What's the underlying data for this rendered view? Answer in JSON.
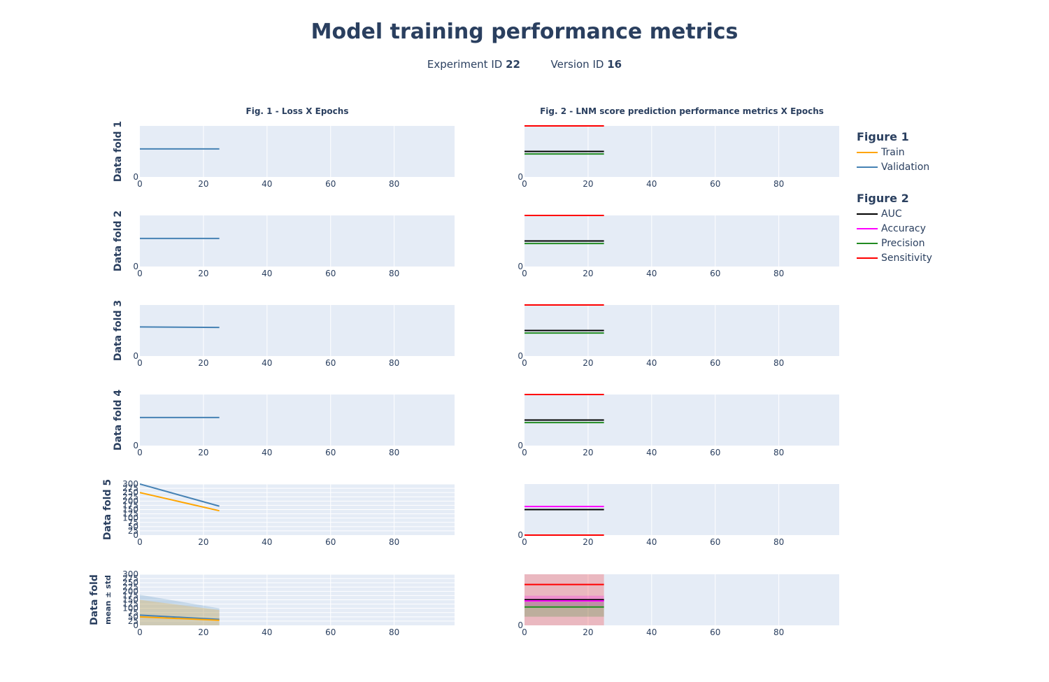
{
  "header": {
    "title": "Model training performance metrics",
    "experiment_label": "Experiment ID",
    "experiment_id": "22",
    "version_label": "Version ID",
    "version_id": "16"
  },
  "columns": [
    {
      "title": "Fig. 1 - Loss X Epochs"
    },
    {
      "title": "Fig. 2 - LNM score prediction performance metrics X Epochs"
    }
  ],
  "legend": {
    "figure1_title": "Figure 1",
    "figure1_items": [
      {
        "name": "Train",
        "color": "#ffa500"
      },
      {
        "name": "Validation",
        "color": "#4682b4"
      }
    ],
    "figure2_title": "Figure 2",
    "figure2_items": [
      {
        "name": "AUC",
        "color": "#000000"
      },
      {
        "name": "Accuracy",
        "color": "#ff00ff"
      },
      {
        "name": "Precision",
        "color": "#228b22"
      },
      {
        "name": "Sensitivity",
        "color": "#ff0000"
      }
    ]
  },
  "chart_data": {
    "type": "line",
    "x_axis": {
      "ticks": [
        0,
        20,
        40,
        60,
        80
      ],
      "range": [
        0,
        99
      ]
    },
    "epochs": [
      0,
      25
    ],
    "row_labels": [
      "Data fold 1",
      "Data fold 2",
      "Data fold 3",
      "Data fold 4",
      "Data fold 5",
      "Data fold"
    ],
    "mean_row_sublabel": "mean ± std",
    "loss_y_ticks": [
      0,
      25,
      50,
      75,
      100,
      125,
      150,
      175,
      200,
      225,
      250,
      275,
      300
    ],
    "loss_y_range": [
      0,
      300
    ],
    "metric_y_ticks": [
      0
    ],
    "metric_y_range": [
      0,
      1
    ],
    "loss_panels": [
      {
        "fold": "Data fold 1",
        "series": [
          {
            "name": "Validation",
            "values": [
              0.55,
              0.55
            ]
          }
        ],
        "y_ticks": [
          0
        ],
        "ylim": [
          0,
          1
        ]
      },
      {
        "fold": "Data fold 2",
        "series": [
          {
            "name": "Validation",
            "values": [
              0.55,
              0.55
            ]
          }
        ],
        "y_ticks": [
          0
        ],
        "ylim": [
          0,
          1
        ]
      },
      {
        "fold": "Data fold 3",
        "series": [
          {
            "name": "Validation",
            "values": [
              0.57,
              0.56
            ]
          }
        ],
        "y_ticks": [
          0
        ],
        "ylim": [
          0,
          1
        ]
      },
      {
        "fold": "Data fold 4",
        "series": [
          {
            "name": "Validation",
            "values": [
              0.55,
              0.55
            ]
          }
        ],
        "y_ticks": [
          0
        ],
        "ylim": [
          0,
          1
        ]
      },
      {
        "fold": "Data fold 5",
        "series": [
          {
            "name": "Validation",
            "values": [
              300,
              170
            ]
          },
          {
            "name": "Train",
            "values": [
              250,
              143
            ]
          }
        ],
        "ylim": [
          0,
          300
        ]
      },
      {
        "fold": "Data fold",
        "series": [
          {
            "name": "Validation",
            "values": [
              60,
              35
            ],
            "std_upper": [
              180,
              100
            ],
            "std_lower": [
              0,
              0
            ]
          },
          {
            "name": "Train",
            "values": [
              50,
              30
            ],
            "std_upper": [
              150,
              90
            ],
            "std_lower": [
              0,
              0
            ]
          }
        ],
        "ylim": [
          0,
          300
        ]
      }
    ],
    "metric_panels": [
      {
        "fold": "Data fold 1",
        "series": [
          {
            "name": "Sensitivity",
            "values": [
              1.0,
              1.0
            ]
          },
          {
            "name": "AUC",
            "values": [
              0.5,
              0.5
            ]
          },
          {
            "name": "Precision",
            "values": [
              0.45,
              0.45
            ]
          }
        ]
      },
      {
        "fold": "Data fold 2",
        "series": [
          {
            "name": "Sensitivity",
            "values": [
              1.0,
              1.0
            ]
          },
          {
            "name": "AUC",
            "values": [
              0.5,
              0.5
            ]
          },
          {
            "name": "Precision",
            "values": [
              0.45,
              0.45
            ]
          }
        ]
      },
      {
        "fold": "Data fold 3",
        "series": [
          {
            "name": "Sensitivity",
            "values": [
              1.0,
              1.0
            ]
          },
          {
            "name": "AUC",
            "values": [
              0.5,
              0.5
            ]
          },
          {
            "name": "Precision",
            "values": [
              0.45,
              0.45
            ]
          }
        ]
      },
      {
        "fold": "Data fold 4",
        "series": [
          {
            "name": "Sensitivity",
            "values": [
              1.0,
              1.0
            ]
          },
          {
            "name": "AUC",
            "values": [
              0.5,
              0.5
            ]
          },
          {
            "name": "Precision",
            "values": [
              0.45,
              0.45
            ]
          }
        ]
      },
      {
        "fold": "Data fold 5",
        "series": [
          {
            "name": "Accuracy",
            "values": [
              0.56,
              0.56
            ]
          },
          {
            "name": "AUC",
            "values": [
              0.5,
              0.5
            ]
          },
          {
            "name": "Sensitivity",
            "values": [
              0.0,
              0.0
            ]
          }
        ]
      },
      {
        "fold": "Data fold",
        "series": [
          {
            "name": "Sensitivity",
            "values": [
              0.8,
              0.8
            ],
            "std_upper": [
              1.0,
              1.0
            ],
            "std_lower": [
              0.0,
              0.0
            ]
          },
          {
            "name": "AUC",
            "values": [
              0.5,
              0.5
            ],
            "std_upper": [
              0.52,
              0.52
            ],
            "std_lower": [
              0.48,
              0.48
            ]
          },
          {
            "name": "Accuracy",
            "values": [
              0.48,
              0.48
            ],
            "std_upper": [
              0.58,
              0.58
            ],
            "std_lower": [
              0.38,
              0.38
            ]
          },
          {
            "name": "Precision",
            "values": [
              0.36,
              0.36
            ],
            "std_upper": [
              0.5,
              0.5
            ],
            "std_lower": [
              0.17,
              0.17
            ]
          }
        ]
      }
    ]
  }
}
